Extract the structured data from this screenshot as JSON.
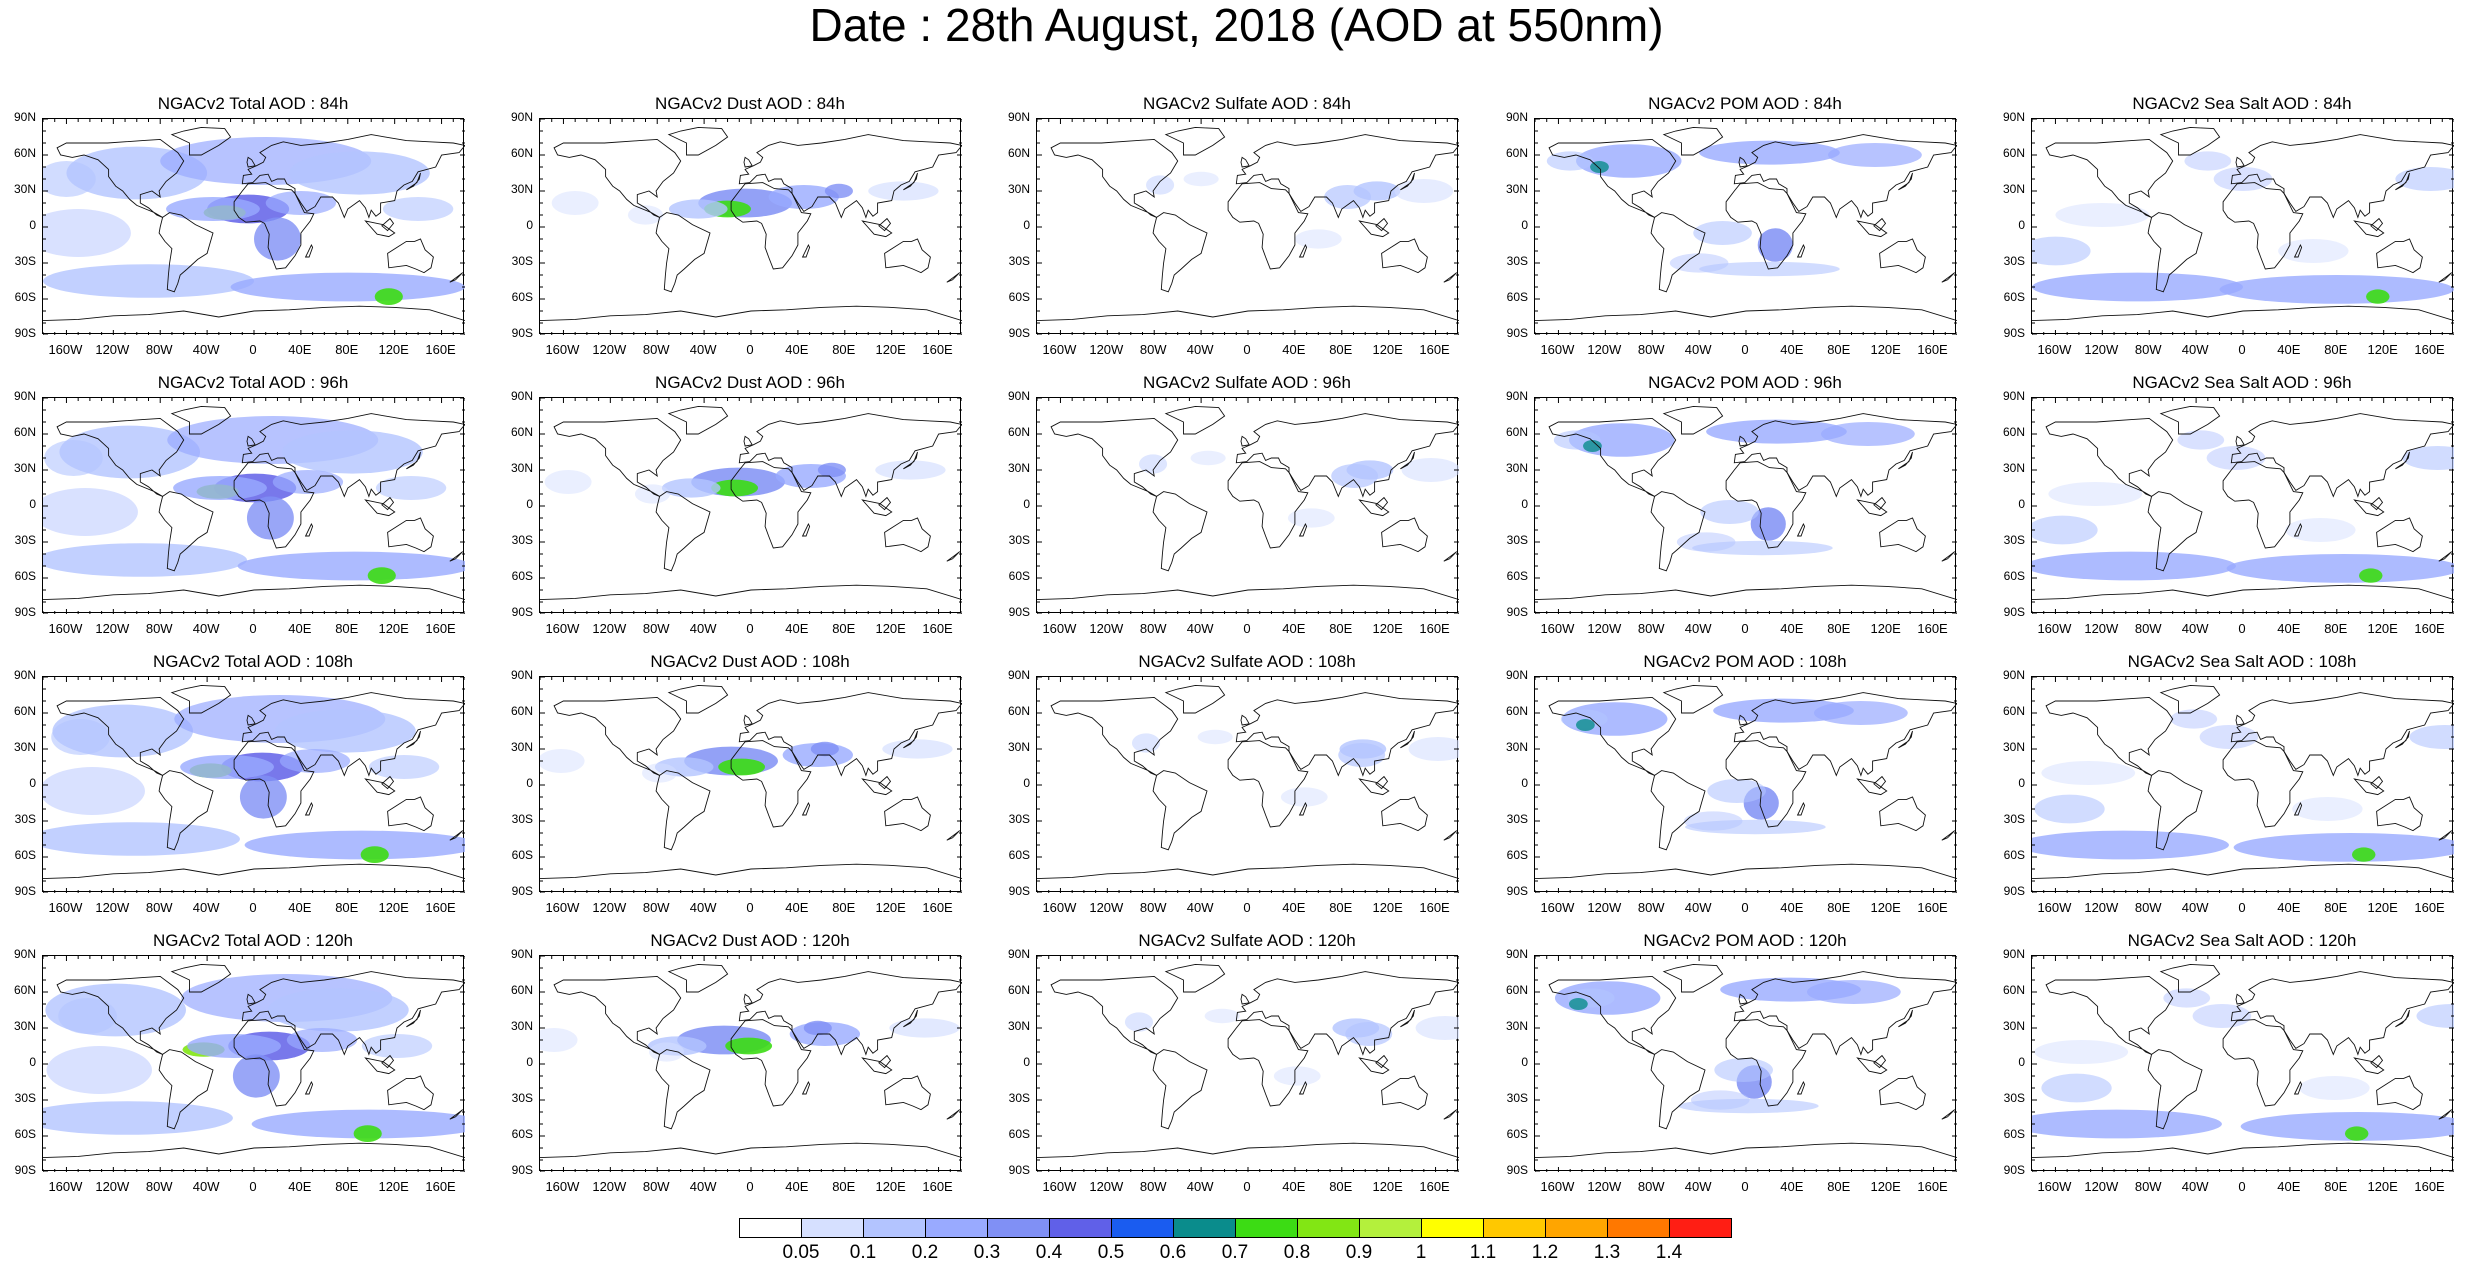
{
  "title": "Date : 28th August, 2018 (AOD at 550nm)",
  "columns": [
    {
      "prefix": "NGACv2 Total AOD : ",
      "id": "total"
    },
    {
      "prefix": "NGACv2 Dust AOD : ",
      "id": "dust"
    },
    {
      "prefix": "NGACv2 Sulfate AOD : ",
      "id": "sulfate"
    },
    {
      "prefix": "NGACv2 POM AOD : ",
      "id": "pom"
    },
    {
      "prefix": "NGACv2 Sea Salt AOD : ",
      "id": "seasalt"
    }
  ],
  "rows": [
    "84h",
    "96h",
    "108h",
    "120h"
  ],
  "panel_titles": [
    [
      "NGACv2 Total AOD : 84h",
      "NGACv2 Dust AOD : 84h",
      "NGACv2 Sulfate AOD : 84h",
      "NGACv2 POM AOD : 84h",
      "NGACv2 Sea Salt AOD : 84h"
    ],
    [
      "NGACv2 Total AOD : 96h",
      "NGACv2 Dust AOD : 96h",
      "NGACv2 Sulfate AOD : 96h",
      "NGACv2 POM AOD : 96h",
      "NGACv2 Sea Salt AOD : 96h"
    ],
    [
      "NGACv2 Total AOD : 108h",
      "NGACv2 Dust AOD : 108h",
      "NGACv2 Sulfate AOD : 108h",
      "NGACv2 POM AOD : 108h",
      "NGACv2 Sea Salt AOD : 108h"
    ],
    [
      "NGACv2 Total AOD : 120h",
      "NGACv2 Dust AOD : 120h",
      "NGACv2 Sulfate AOD : 120h",
      "NGACv2 POM AOD : 120h",
      "NGACv2 Sea Salt  AOD : 120h"
    ]
  ],
  "lat_labels": [
    "90N",
    "60N",
    "30N",
    "0",
    "30S",
    "60S",
    "90S"
  ],
  "lon_labels": [
    "160W",
    "120W",
    "80W",
    "40W",
    "0",
    "40E",
    "80E",
    "120E",
    "160E"
  ],
  "colorbar": {
    "labels": [
      "0.05",
      "0.1",
      "0.2",
      "0.3",
      "0.4",
      "0.5",
      "0.6",
      "0.7",
      "0.8",
      "0.9",
      "1",
      "1.1",
      "1.2",
      "1.3",
      "1.4"
    ],
    "colors": [
      "#ffffff",
      "#d6e0ff",
      "#b3c4ff",
      "#99aaff",
      "#8090f5",
      "#6060e8",
      "#1a5cf0",
      "#0a8c8c",
      "#3cdc14",
      "#82e614",
      "#b4f03c",
      "#ffff00",
      "#ffc800",
      "#ffa500",
      "#ff7800",
      "#ff1e14"
    ]
  }
}
